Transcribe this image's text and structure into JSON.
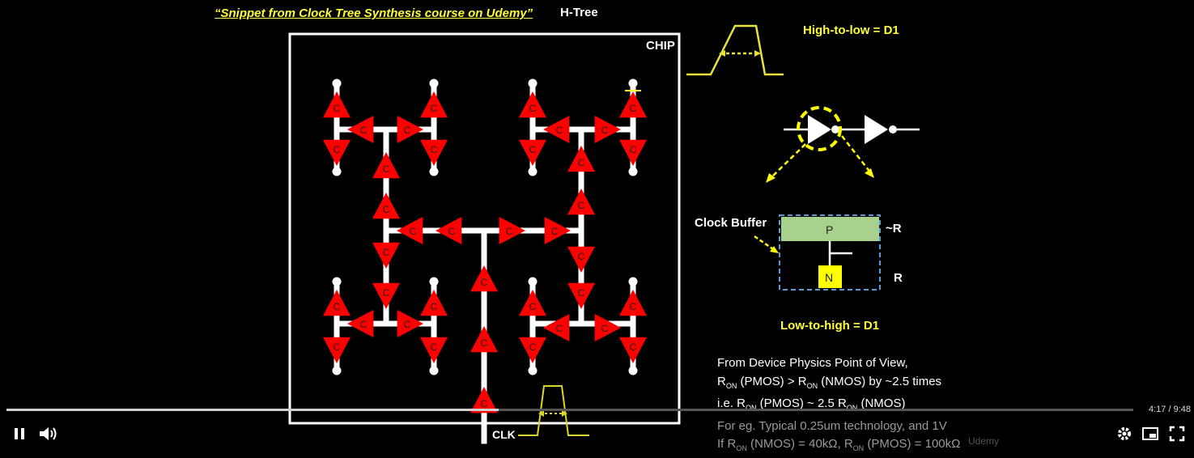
{
  "slide": {
    "caption": "“Snippet from Clock Tree Synthesis course on Udemy”",
    "title": "H-Tree",
    "chip_label": "CHIP",
    "buffer_letter": "C",
    "clk_label": "CLK",
    "high_to_low": "High-to-low = D1",
    "low_to_high": "Low-to-high = D1",
    "clock_buffer_label": "Clock Buffer",
    "p_label": "P",
    "n_label": "N",
    "r_approx": "~R",
    "r_label": "R",
    "physics": {
      "line1": "From Device Physics Point of View,",
      "line2": {
        "a": "R",
        "sub1": "ON",
        "b": " (PMOS) > R",
        "sub2": "ON",
        "c": " (NMOS) by ~2.5 times"
      },
      "line3": {
        "a": "i.e. R",
        "sub1": "ON",
        "b": " (PMOS) ~ 2.5 R",
        "sub2": "ON",
        "c": " (NMOS)"
      },
      "line4": "For eg. Typical 0.25um technology, and 1V",
      "line5": {
        "a": "If R",
        "sub1": "ON",
        "b": " (NMOS) = 40kΩ, R",
        "sub2": "ON",
        "c": " (PMOS) = 100kΩ"
      }
    },
    "watermark": "Udemy",
    "colors": {
      "buffer": "#ff0000",
      "wire": "#ffffff",
      "highlight": "#ffff33",
      "p_region": "#a9d18e",
      "n_region": "#ffff00"
    }
  },
  "player": {
    "progress": 0.4366,
    "time": "4:17 / 9:48",
    "pause_icon": "pause-icon",
    "volume_icon": "volume-icon",
    "settings_icon": "gear-icon",
    "miniplayer_icon": "miniplayer-icon",
    "fullscreen_icon": "fullscreen-icon"
  }
}
